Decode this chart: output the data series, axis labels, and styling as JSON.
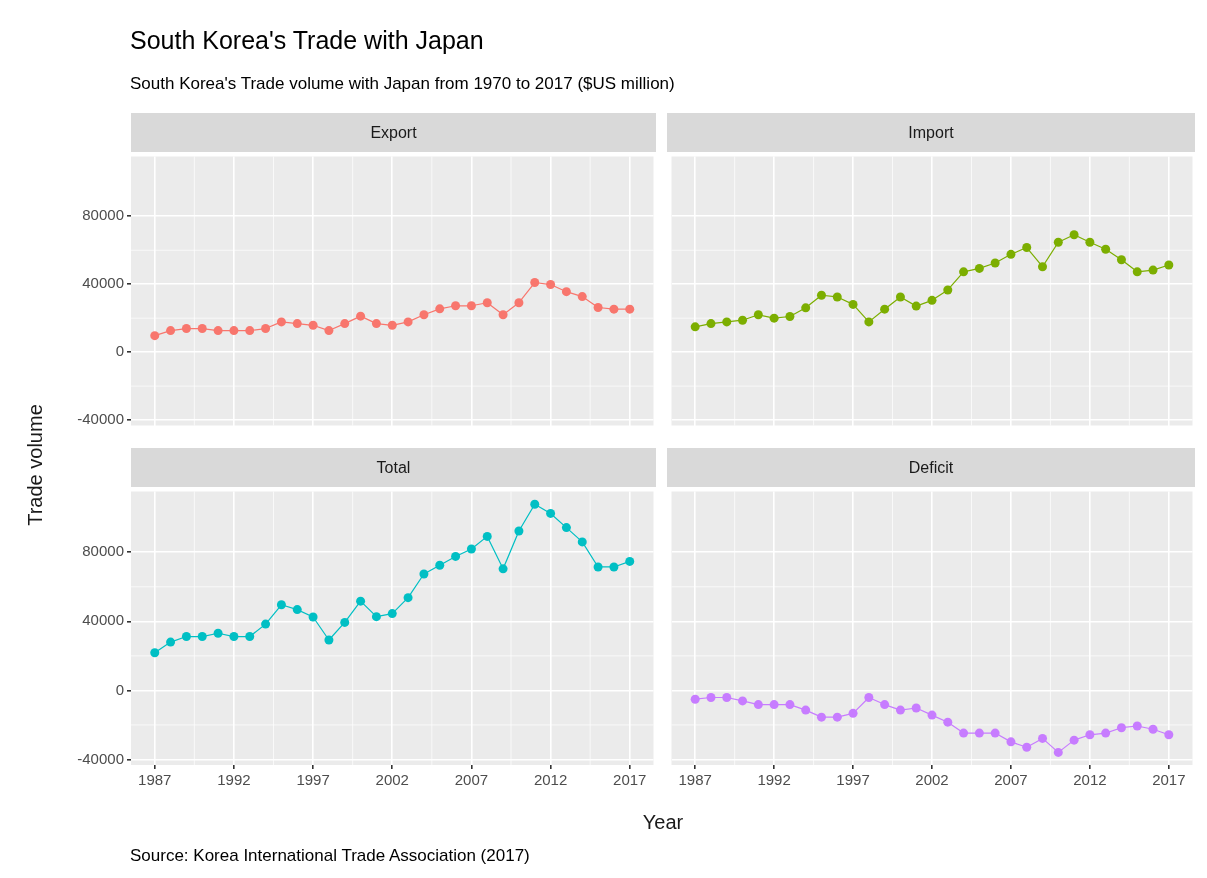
{
  "chart_data": [
    {
      "type": "other",
      "title": "South Korea's Trade with Japan",
      "subtitle": "South Korea's Trade volume with Japan from 1970 to 2017 ($US million)",
      "xlabel": "Year",
      "ylabel": "Trade volume",
      "annotations": [
        "Source: Korea International Trade Association (2017)"
      ]
    },
    {
      "type": "line",
      "title": "Export",
      "x": [
        1987,
        1988,
        1989,
        1990,
        1991,
        1992,
        1993,
        1994,
        1995,
        1996,
        1997,
        1998,
        1999,
        2000,
        2001,
        2002,
        2003,
        2004,
        2005,
        2006,
        2007,
        2008,
        2009,
        2010,
        2011,
        2012,
        2013,
        2014,
        2015,
        2016,
        2017
      ],
      "xlim": [
        1985.5,
        2018.5
      ],
      "xticks": [
        1987,
        1992,
        1997,
        2002,
        2007,
        2012,
        2017
      ],
      "ylim": [
        -43200,
        115200
      ],
      "yticks": [
        -40000,
        0,
        40000,
        80000
      ],
      "grid": true,
      "marker": "circle",
      "tick_labels": "y",
      "series": [
        {
          "color": "#f8766d",
          "values": [
            9700,
            12700,
            13900,
            13900,
            12700,
            12700,
            12700,
            13900,
            17800,
            16800,
            15800,
            12700,
            16800,
            21200,
            16800,
            15800,
            17800,
            22000,
            25500,
            27300,
            27300,
            29100,
            22000,
            29100,
            41000,
            39800,
            35600,
            32700,
            26300,
            25300,
            25300
          ]
        }
      ]
    },
    {
      "type": "line",
      "title": "Import",
      "x": [
        1987,
        1988,
        1989,
        1990,
        1991,
        1992,
        1993,
        1994,
        1995,
        1996,
        1997,
        1998,
        1999,
        2000,
        2001,
        2002,
        2003,
        2004,
        2005,
        2006,
        2007,
        2008,
        2009,
        2010,
        2011,
        2012,
        2013,
        2014,
        2015,
        2016,
        2017
      ],
      "xlim": [
        1985.5,
        2018.5
      ],
      "xticks": [
        1987,
        1992,
        1997,
        2002,
        2007,
        2012,
        2017
      ],
      "ylim": [
        -43200,
        115200
      ],
      "yticks": [
        -40000,
        0,
        40000,
        80000
      ],
      "grid": true,
      "marker": "circle",
      "tick_labels": false,
      "series": [
        {
          "color": "#7cae00",
          "values": [
            14900,
            16800,
            17800,
            18800,
            22000,
            20000,
            21000,
            26100,
            33500,
            32500,
            28100,
            17800,
            25300,
            32500,
            27100,
            30500,
            36600,
            47300,
            49300,
            52500,
            57600,
            61600,
            50300,
            64700,
            69100,
            64700,
            60600,
            54400,
            47300,
            48300,
            51300
          ]
        }
      ]
    },
    {
      "type": "line",
      "title": "Total",
      "x": [
        1987,
        1988,
        1989,
        1990,
        1991,
        1992,
        1993,
        1994,
        1995,
        1996,
        1997,
        1998,
        1999,
        2000,
        2001,
        2002,
        2003,
        2004,
        2005,
        2006,
        2007,
        2008,
        2009,
        2010,
        2011,
        2012,
        2013,
        2014,
        2015,
        2016,
        2017
      ],
      "xlim": [
        1985.5,
        2018.5
      ],
      "xticks": [
        1987,
        1992,
        1997,
        2002,
        2007,
        2012,
        2017
      ],
      "ylim": [
        -43200,
        115200
      ],
      "yticks": [
        -40000,
        0,
        40000,
        80000
      ],
      "grid": true,
      "marker": "circle",
      "series": [
        {
          "color": "#00bfc4",
          "values": [
            21800,
            28000,
            31200,
            31200,
            33100,
            31200,
            31200,
            38400,
            49600,
            46800,
            42500,
            29200,
            39400,
            51700,
            42700,
            44500,
            53700,
            67400,
            72500,
            77600,
            81900,
            89200,
            70400,
            92300,
            107800,
            102500,
            94300,
            86000,
            71500,
            71500,
            74700
          ]
        }
      ]
    },
    {
      "type": "line",
      "title": "Deficit",
      "x": [
        1987,
        1988,
        1989,
        1990,
        1991,
        1992,
        1993,
        1994,
        1995,
        1996,
        1997,
        1998,
        1999,
        2000,
        2001,
        2002,
        2003,
        2004,
        2005,
        2006,
        2007,
        2008,
        2009,
        2010,
        2011,
        2012,
        2013,
        2014,
        2015,
        2016,
        2017
      ],
      "xlim": [
        1985.5,
        2018.5
      ],
      "xticks": [
        1987,
        1992,
        1997,
        2002,
        2007,
        2012,
        2017
      ],
      "ylim": [
        -43200,
        115200
      ],
      "yticks": [
        -40000,
        0,
        40000,
        80000
      ],
      "grid": true,
      "marker": "circle",
      "tick_labels": "x",
      "series": [
        {
          "color": "#c77cff",
          "values": [
            -5100,
            -4100,
            -4100,
            -6100,
            -8200,
            -8200,
            -8200,
            -11400,
            -15500,
            -15500,
            -13300,
            -4100,
            -8200,
            -11400,
            -10200,
            -14300,
            -18400,
            -24700,
            -24700,
            -24700,
            -29800,
            -32900,
            -27800,
            -35900,
            -28800,
            -25700,
            -24700,
            -21600,
            -20600,
            -22500,
            -25700
          ]
        }
      ]
    }
  ]
}
